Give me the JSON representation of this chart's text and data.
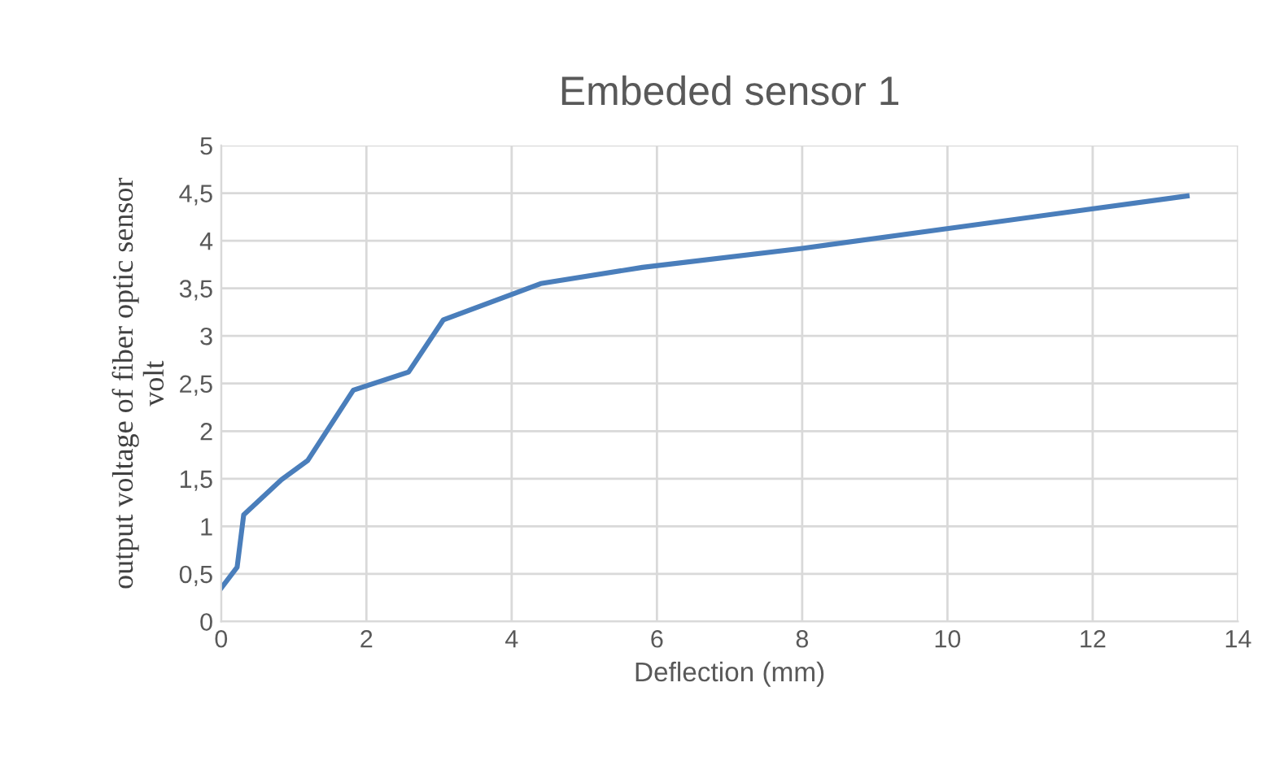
{
  "chart_data": {
    "type": "line",
    "title": "Embeded sensor 1",
    "xlabel": "Deflection (mm)",
    "ylabel": "output voltage of fiber optic sensor\nvolt",
    "series": [
      {
        "color": "#4a7ebb",
        "x": [
          0,
          0.22,
          0.31,
          0.83,
          1.19,
          1.82,
          2.58,
          3.06,
          4.4,
          5.8,
          8,
          13.3
        ],
        "values": [
          0.35,
          0.57,
          1.12,
          1.49,
          1.69,
          2.43,
          2.62,
          3.17,
          3.55,
          3.72,
          3.92,
          4.47
        ]
      }
    ],
    "xlim": [
      0,
      14
    ],
    "xticks": [
      0,
      2,
      4,
      6,
      8,
      10,
      12,
      14
    ],
    "ylim": [
      0,
      5
    ],
    "yticks": [
      0,
      {
        "value": 0.5,
        "label": "0,5"
      },
      1,
      {
        "value": 1.5,
        "label": "1,5"
      },
      2,
      {
        "value": 2.5,
        "label": "2,5"
      },
      3,
      {
        "value": 3.5,
        "label": "3,5"
      },
      4,
      {
        "value": 4.5,
        "label": "4,5"
      },
      5
    ],
    "grid": true,
    "legend": false,
    "marker": "none",
    "line_style": "solid"
  }
}
